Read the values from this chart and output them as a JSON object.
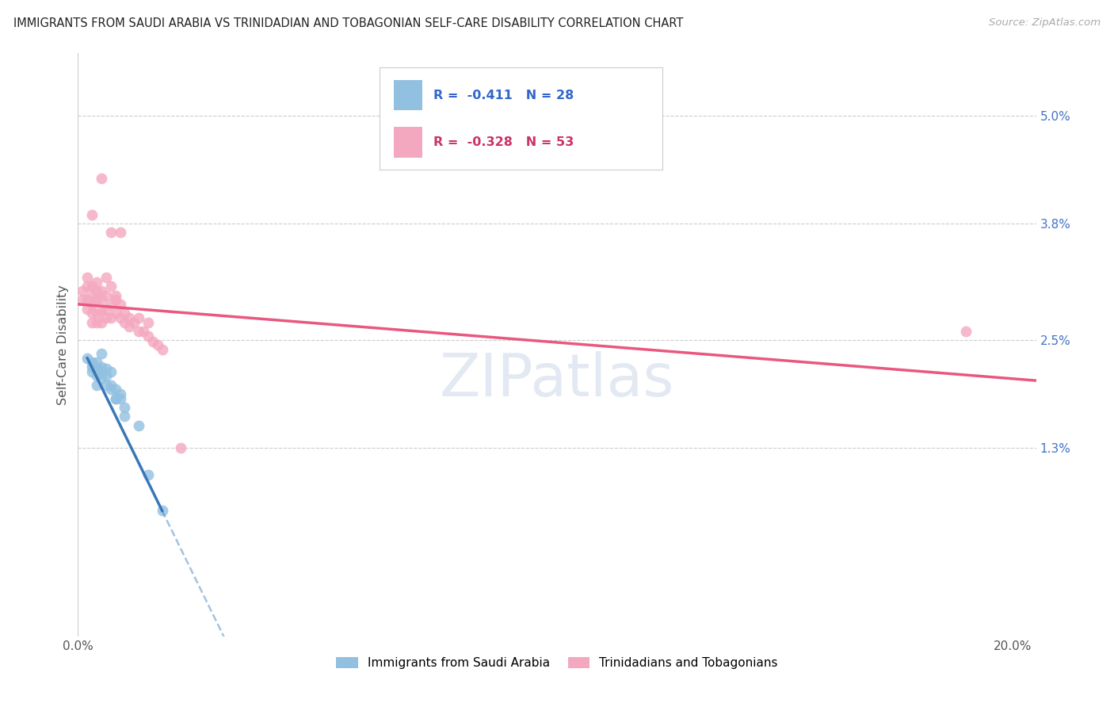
{
  "title": "IMMIGRANTS FROM SAUDI ARABIA VS TRINIDADIAN AND TOBAGONIAN SELF-CARE DISABILITY CORRELATION CHART",
  "source": "Source: ZipAtlas.com",
  "ylabel_label": "Self-Care Disability",
  "xlim": [
    0.0,
    0.205
  ],
  "ylim": [
    -0.008,
    0.057
  ],
  "ytick_vals": [
    0.013,
    0.025,
    0.038,
    0.05
  ],
  "ytick_labels": [
    "1.3%",
    "2.5%",
    "3.8%",
    "5.0%"
  ],
  "xtick_vals": [
    0.0,
    0.2
  ],
  "xtick_labels": [
    "0.0%",
    "20.0%"
  ],
  "legend_label_blue": "Immigrants from Saudi Arabia",
  "legend_label_pink": "Trinidadians and Tobagonians",
  "watermark": "ZIPatlas",
  "blue_scatter_color": "#92c0e0",
  "pink_scatter_color": "#f4a8c0",
  "blue_line_color": "#3878b8",
  "pink_line_color": "#e85880",
  "blue_scatter": [
    [
      0.002,
      0.023
    ],
    [
      0.003,
      0.022
    ],
    [
      0.003,
      0.0215
    ],
    [
      0.003,
      0.0225
    ],
    [
      0.004,
      0.021
    ],
    [
      0.004,
      0.0218
    ],
    [
      0.004,
      0.0225
    ],
    [
      0.004,
      0.02
    ],
    [
      0.005,
      0.0215
    ],
    [
      0.005,
      0.0208
    ],
    [
      0.005,
      0.022
    ],
    [
      0.005,
      0.0235
    ],
    [
      0.006,
      0.021
    ],
    [
      0.006,
      0.02
    ],
    [
      0.006,
      0.0218
    ],
    [
      0.007,
      0.0195
    ],
    [
      0.007,
      0.02
    ],
    [
      0.007,
      0.0215
    ],
    [
      0.008,
      0.0195
    ],
    [
      0.008,
      0.0185
    ],
    [
      0.008,
      0.0185
    ],
    [
      0.009,
      0.019
    ],
    [
      0.009,
      0.0185
    ],
    [
      0.01,
      0.0165
    ],
    [
      0.01,
      0.0175
    ],
    [
      0.013,
      0.0155
    ],
    [
      0.015,
      0.01
    ],
    [
      0.018,
      0.006
    ]
  ],
  "pink_scatter": [
    [
      0.001,
      0.0295
    ],
    [
      0.001,
      0.0305
    ],
    [
      0.002,
      0.0285
    ],
    [
      0.002,
      0.0295
    ],
    [
      0.002,
      0.031
    ],
    [
      0.002,
      0.032
    ],
    [
      0.003,
      0.027
    ],
    [
      0.003,
      0.028
    ],
    [
      0.003,
      0.029
    ],
    [
      0.003,
      0.03
    ],
    [
      0.003,
      0.031
    ],
    [
      0.003,
      0.039
    ],
    [
      0.004,
      0.027
    ],
    [
      0.004,
      0.028
    ],
    [
      0.004,
      0.0295
    ],
    [
      0.004,
      0.0305
    ],
    [
      0.004,
      0.0315
    ],
    [
      0.005,
      0.027
    ],
    [
      0.005,
      0.0282
    ],
    [
      0.005,
      0.0295
    ],
    [
      0.005,
      0.0305
    ],
    [
      0.005,
      0.043
    ],
    [
      0.006,
      0.0275
    ],
    [
      0.006,
      0.0285
    ],
    [
      0.006,
      0.03
    ],
    [
      0.006,
      0.032
    ],
    [
      0.007,
      0.0275
    ],
    [
      0.007,
      0.029
    ],
    [
      0.007,
      0.031
    ],
    [
      0.007,
      0.037
    ],
    [
      0.008,
      0.028
    ],
    [
      0.008,
      0.03
    ],
    [
      0.008,
      0.0295
    ],
    [
      0.009,
      0.0275
    ],
    [
      0.009,
      0.029
    ],
    [
      0.009,
      0.037
    ],
    [
      0.01,
      0.028
    ],
    [
      0.01,
      0.027
    ],
    [
      0.011,
      0.0275
    ],
    [
      0.011,
      0.0265
    ],
    [
      0.012,
      0.027
    ],
    [
      0.013,
      0.026
    ],
    [
      0.013,
      0.0275
    ],
    [
      0.014,
      0.026
    ],
    [
      0.015,
      0.0255
    ],
    [
      0.015,
      0.027
    ],
    [
      0.016,
      0.0248
    ],
    [
      0.017,
      0.0245
    ],
    [
      0.018,
      0.024
    ],
    [
      0.022,
      0.013
    ],
    [
      0.19,
      0.026
    ]
  ]
}
